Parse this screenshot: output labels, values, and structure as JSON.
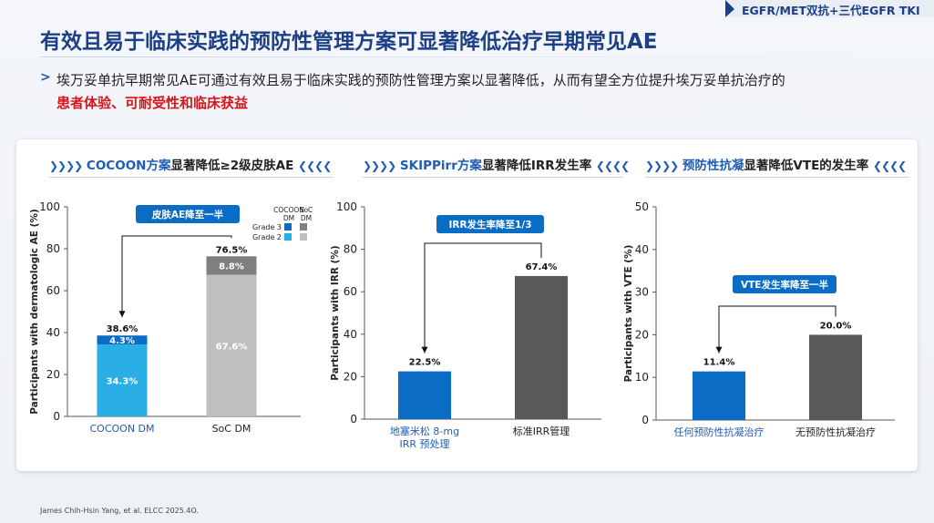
{
  "header": {
    "tag": "EGFR/MET双抗+三代EGFR TKI",
    "title": "有效且易于临床实践的预防性管理方案可显著降低治疗早期常见AE",
    "bullet_main": "埃万妥单抗早期常见AE可通过有效且易于临床实践的预防性管理方案以显著降低，从而有望全方位提升埃万妥单抗治疗的",
    "bullet_highlight": "患者体验、可耐受性和临床获益"
  },
  "sections": [
    {
      "blue": "COCOON方案",
      "dark": "显著降低≥2级皮肤AE"
    },
    {
      "blue": "SKIPPirr方案",
      "dark": "显著降低IRR发生率"
    },
    {
      "blue": "预防性抗凝",
      "dark": "显著降低VTE的发生率"
    }
  ],
  "footnote": "James Chih-Hsin Yang,  et al. ELCC 2025.4O.",
  "colors": {
    "blue": "#1f5cb3",
    "grade3_cocoon": "#0a6cc4",
    "grade2_cocoon": "#29aee6",
    "grade3_soc": "#7f7f7f",
    "grade2_soc": "#bfbfbf",
    "bar_blue": "#0a6cc4",
    "bar_gray": "#595959",
    "callout": "#0a6cc4"
  },
  "chart_data": [
    {
      "type": "bar",
      "stacked": true,
      "ylabel": "Participants with dermatologic AE (%)",
      "ylim": [
        0,
        100
      ],
      "yticks": [
        0,
        20,
        40,
        60,
        80,
        100
      ],
      "categories": [
        "COCOON DM",
        "SoC DM"
      ],
      "category_colors": [
        "#1f5cb3",
        "#222222"
      ],
      "series": [
        {
          "name": "Grade 2",
          "values": [
            34.3,
            67.6
          ],
          "labels": [
            "34.3%",
            "67.6%"
          ],
          "colors": [
            "#29aee6",
            "#bfbfbf"
          ]
        },
        {
          "name": "Grade 3",
          "values": [
            4.3,
            8.8
          ],
          "labels": [
            "4.3%",
            "8.8%"
          ],
          "colors": [
            "#0a6cc4",
            "#7f7f7f"
          ]
        }
      ],
      "totals": [
        "38.6%",
        "76.5%"
      ],
      "legend": {
        "col_headers": [
          "COCOON DM",
          "SoC DM"
        ],
        "col_header_lines": [
          [
            "COCOON",
            "DM"
          ],
          [
            "SoC",
            "DM"
          ]
        ],
        "rows": [
          {
            "label": "Grade 3",
            "colors": [
              "#0a6cc4",
              "#7f7f7f"
            ]
          },
          {
            "label": "Grade 2",
            "colors": [
              "#29aee6",
              "#bfbfbf"
            ]
          }
        ]
      },
      "callout": {
        "text": "皮肤AE降至一半",
        "from_value": 76.5,
        "to_value": 38.6
      }
    },
    {
      "type": "bar",
      "ylabel": "Participants with IRR (%)",
      "ylim": [
        0,
        100
      ],
      "yticks": [
        0,
        20,
        40,
        60,
        80,
        100
      ],
      "categories": [
        "地塞米松 8-mg IRR 预处理",
        "标准IRR管理"
      ],
      "category_lines": [
        [
          "地塞米松 8-mg",
          "IRR 预处理"
        ],
        [
          "标准IRR管理"
        ]
      ],
      "category_colors": [
        "#1f5cb3",
        "#222222"
      ],
      "values": [
        22.5,
        67.4
      ],
      "labels": [
        "22.5%",
        "67.4%"
      ],
      "colors": [
        "#0a6cc4",
        "#595959"
      ],
      "callout": {
        "text": "IRR发生率降至1/3",
        "from_value": 67.4,
        "to_value": 22.5
      }
    },
    {
      "type": "bar",
      "ylabel": "Participants with VTE (%)",
      "ylim": [
        0,
        50
      ],
      "yticks": [
        0,
        10,
        20,
        30,
        40,
        50
      ],
      "categories": [
        "任何预防性抗凝治疗",
        "无预防性抗凝治疗"
      ],
      "category_colors": [
        "#1f5cb3",
        "#222222"
      ],
      "values": [
        11.4,
        20.0
      ],
      "labels": [
        "11.4%",
        "20.0%"
      ],
      "colors": [
        "#0a6cc4",
        "#595959"
      ],
      "callout": {
        "text": "VTE发生率降至一半",
        "from_value": 20.0,
        "to_value": 11.4
      }
    }
  ]
}
